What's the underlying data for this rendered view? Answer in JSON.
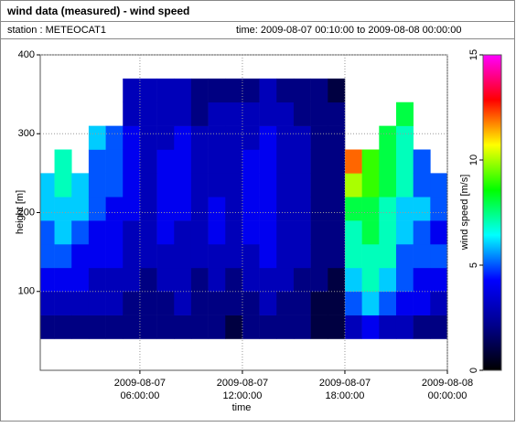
{
  "chart_data": {
    "type": "heatmap",
    "title": "wind data (measured) - wind speed",
    "station": "station : METEOCAT1",
    "period": "time: 2009-08-07 00:10:00 to 2009-08-08 00:00:00",
    "xlabel": "time",
    "ylabel": "height [m]",
    "colorbar_label": "wind speed [m/s]",
    "xlim": [
      0.1667,
      24
    ],
    "ylim": [
      0,
      400
    ],
    "clim": [
      0,
      15
    ],
    "xticks": [
      {
        "value": 6,
        "label": [
          "2009-08-07",
          "06:00:00"
        ]
      },
      {
        "value": 12,
        "label": [
          "2009-08-07",
          "12:00:00"
        ]
      },
      {
        "value": 18,
        "label": [
          "2009-08-07",
          "18:00:00"
        ]
      },
      {
        "value": 24,
        "label": [
          "2009-08-08",
          "00:00:00"
        ]
      }
    ],
    "yticks": [
      100,
      200,
      300,
      400
    ],
    "cticks": [
      0,
      5,
      10,
      15
    ],
    "grid": true,
    "colorscale": [
      "#000000",
      "#00008b",
      "#0000ff",
      "#00ffff",
      "#00ff00",
      "#ffff00",
      "#ff0000",
      "#ff00ff"
    ],
    "x": [
      0.1667,
      1,
      2,
      3,
      4,
      5,
      6,
      7,
      8,
      9,
      10,
      11,
      12,
      13,
      14,
      15,
      16,
      17,
      18,
      19,
      20,
      21,
      22,
      23,
      24
    ],
    "y": [
      40,
      70,
      100,
      130,
      160,
      190,
      220,
      250,
      280,
      310,
      340,
      370
    ],
    "values": [
      [
        2,
        3,
        4,
        5,
        5,
        6,
        6,
        null,
        null,
        null,
        null
      ],
      [
        2,
        3,
        4,
        5,
        6,
        6,
        7,
        7,
        null,
        null,
        null
      ],
      [
        2,
        3,
        4,
        4,
        5,
        6,
        6,
        null,
        null,
        null,
        null
      ],
      [
        2,
        3,
        3,
        4,
        4,
        5,
        5,
        5,
        6,
        null,
        null
      ],
      [
        2,
        3,
        3,
        4,
        4,
        4,
        5,
        5,
        5,
        null,
        null
      ],
      [
        2,
        2,
        3,
        3,
        3,
        4,
        4,
        4,
        4,
        3,
        3
      ],
      [
        2,
        2,
        2,
        3,
        3,
        3,
        3,
        3,
        3,
        3,
        3
      ],
      [
        2,
        2,
        3,
        3,
        4,
        4,
        4,
        4,
        3,
        3,
        3
      ],
      [
        2,
        3,
        3,
        3,
        3,
        4,
        4,
        4,
        4,
        3,
        3
      ],
      [
        2,
        2,
        2,
        3,
        3,
        3,
        3,
        3,
        3,
        2,
        2
      ],
      [
        2,
        2,
        3,
        3,
        4,
        4,
        3,
        3,
        3,
        3,
        2
      ],
      [
        1,
        2,
        2,
        3,
        3,
        3,
        3,
        3,
        3,
        3,
        2
      ],
      [
        2,
        2,
        3,
        3,
        4,
        4,
        4,
        4,
        3,
        3,
        2
      ],
      [
        2,
        3,
        3,
        4,
        4,
        4,
        4,
        4,
        4,
        3,
        3
      ],
      [
        2,
        2,
        3,
        3,
        3,
        3,
        3,
        3,
        3,
        3,
        2
      ],
      [
        2,
        2,
        2,
        3,
        3,
        3,
        3,
        3,
        3,
        2,
        2
      ],
      [
        1,
        1,
        2,
        2,
        2,
        2,
        2,
        2,
        2,
        2,
        2
      ],
      [
        1,
        1,
        1,
        2,
        2,
        2,
        2,
        2,
        2,
        2,
        1
      ],
      [
        3,
        5,
        6,
        7,
        7,
        8,
        10,
        12,
        null,
        null,
        null
      ],
      [
        4,
        6,
        7,
        7,
        8,
        8,
        9,
        9,
        null,
        null,
        null
      ],
      [
        3,
        5,
        6,
        7,
        7,
        7,
        8,
        8,
        8,
        null,
        null
      ],
      [
        3,
        4,
        5,
        5,
        6,
        6,
        7,
        7,
        7,
        8,
        null
      ],
      [
        2,
        4,
        4,
        5,
        5,
        6,
        5,
        5,
        null,
        null,
        null
      ],
      [
        2,
        3,
        4,
        5,
        4,
        5,
        5,
        null,
        null,
        null,
        null
      ]
    ]
  }
}
